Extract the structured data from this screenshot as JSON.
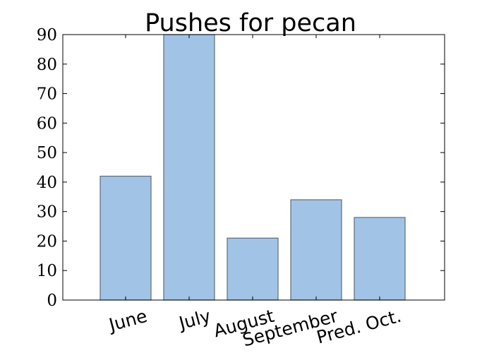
{
  "chart_data": {
    "type": "bar",
    "title": "Pushes for pecan",
    "xlabel": "",
    "ylabel": "",
    "categories": [
      "June",
      "July",
      "August",
      "September",
      "Pred. Oct."
    ],
    "values": [
      42,
      90,
      21,
      34,
      28
    ],
    "ylim": [
      0,
      90
    ],
    "yticks": [
      "0",
      "10",
      "20",
      "30",
      "40",
      "50",
      "60",
      "70",
      "80",
      "90"
    ],
    "grid": false,
    "bar_color": "#a1c4e6",
    "bar_edge_color": "#5f6b77"
  }
}
